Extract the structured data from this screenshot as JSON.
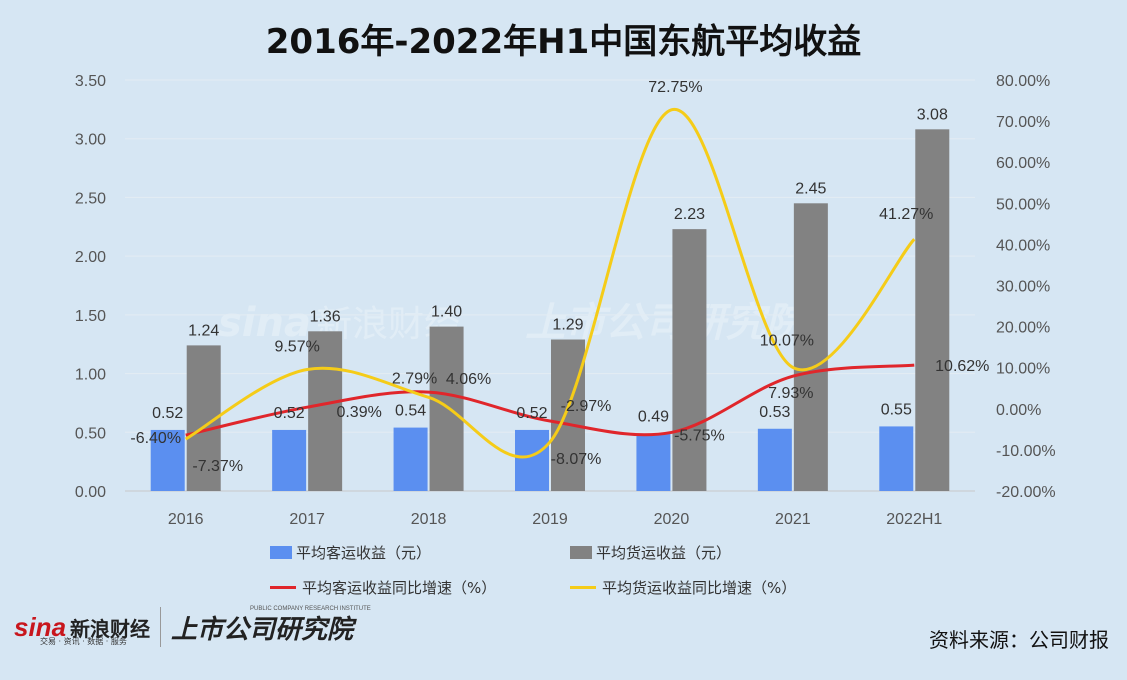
{
  "title": "2016年-2022年H1中国东航平均收益",
  "footer": {
    "sina_logo": "sina",
    "sina_name": "新浪财经",
    "sina_sub": "交易 · 资讯 · 数据 · 服务",
    "institute_name": "上市公司研究院",
    "institute_sub": "PUBLIC COMPANY RESEARCH INSTITUTE",
    "source": "资料来源：公司财报"
  },
  "chart_data": {
    "type": "bar",
    "categories": [
      "2016",
      "2017",
      "2018",
      "2019",
      "2020",
      "2021",
      "2022H1"
    ],
    "y_left": {
      "min": 0,
      "max": 3.5,
      "ticks": [
        "0.00",
        "0.50",
        "1.00",
        "1.50",
        "2.00",
        "2.50",
        "3.00",
        "3.50"
      ]
    },
    "y_right": {
      "min": -20,
      "max": 80,
      "ticks": [
        "-20.00%",
        "-10.00%",
        "0.00%",
        "10.00%",
        "20.00%",
        "30.00%",
        "40.00%",
        "50.00%",
        "60.00%",
        "70.00%",
        "80.00%"
      ]
    },
    "grid": true,
    "legend_position": "bottom",
    "series": [
      {
        "name": "平均客运收益（元）",
        "type": "bar",
        "axis": "left",
        "color": "#5b8ff0",
        "values": [
          0.52,
          0.52,
          0.54,
          0.52,
          0.49,
          0.53,
          0.55
        ],
        "labels": [
          "0.52",
          "0.52",
          "0.54",
          "0.52",
          "0.49",
          "0.53",
          "0.55"
        ]
      },
      {
        "name": "平均货运收益（元）",
        "type": "bar",
        "axis": "left",
        "color": "#828282",
        "values": [
          1.24,
          1.36,
          1.4,
          1.29,
          2.23,
          2.45,
          3.08
        ],
        "labels": [
          "1.24",
          "1.36",
          "1.40",
          "1.29",
          "2.23",
          "2.45",
          "3.08"
        ]
      },
      {
        "name": "平均客运收益同比增速（%）",
        "type": "line",
        "axis": "right",
        "color": "#e0262b",
        "values": [
          -6.4,
          0.39,
          4.06,
          -2.97,
          -5.75,
          7.93,
          10.62
        ],
        "labels": [
          "-6.40%",
          "0.39%",
          "4.06%",
          "-2.97%",
          "-5.75%",
          "7.93%",
          "10.62%"
        ]
      },
      {
        "name": "平均货运收益同比增速（%）",
        "type": "line",
        "axis": "right",
        "color": "#f5cc18",
        "values": [
          -7.37,
          9.57,
          2.79,
          -8.07,
          72.75,
          10.07,
          41.27
        ],
        "labels": [
          "-7.37%",
          "9.57%",
          "2.79%",
          "-8.07%",
          "72.75%",
          "10.07%",
          "41.27%"
        ]
      }
    ]
  }
}
